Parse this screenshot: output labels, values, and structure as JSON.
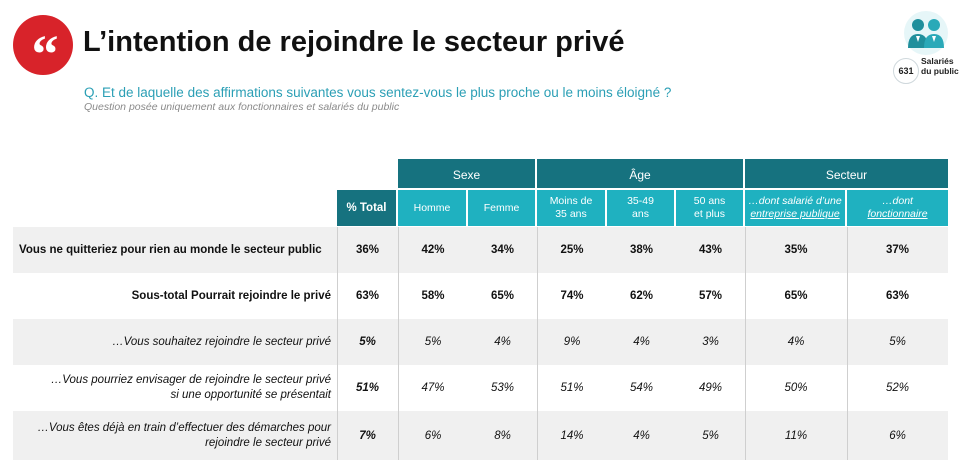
{
  "header": {
    "quote_icon": "quote-icon",
    "title": "L’intention de rejoindre le secteur privé",
    "question": "Q. Et de laquelle des affirmations suivantes vous sentez-vous le plus proche ou le moins éloigné ?",
    "sub_question": "Question posée uniquement aux fonctionnaires et salariés du public"
  },
  "badge": {
    "icon": "people-icon",
    "count": "631",
    "label_line1": "Salariés",
    "label_line2": "du public"
  },
  "colors": {
    "accent_red": "#d8232a",
    "header_dark": "#16727f",
    "header_light": "#1fb1c0",
    "question_teal": "#2b9fb5",
    "row_shade": "#f0f0f0"
  },
  "table": {
    "groups": {
      "sexe": "Sexe",
      "age": "Âge",
      "secteur": "Secteur"
    },
    "columns": {
      "total": "% Total",
      "homme": "Homme",
      "femme": "Femme",
      "moins35_l1": "Moins de",
      "moins35_l2": "35 ans",
      "a3549_l1": "35-49",
      "a3549_l2": "ans",
      "a50_l1": "50 ans",
      "a50_l2": "et plus",
      "salarie_l1": "…dont salarié d’une",
      "salarie_l2": "entreprise publique",
      "fonct_l1": "…dont",
      "fonct_l2": "fonctionnaire"
    },
    "rows": [
      {
        "label": "Vous ne quitteriez pour rien au monde le secteur public",
        "label2": "",
        "values": [
          "36%",
          "42%",
          "34%",
          "25%",
          "38%",
          "43%",
          "35%",
          "37%"
        ]
      },
      {
        "label": "Sous-total Pourrait rejoindre le privé",
        "label2": "",
        "values": [
          "63%",
          "58%",
          "65%",
          "74%",
          "62%",
          "57%",
          "65%",
          "63%"
        ]
      },
      {
        "label": "…Vous souhaitez rejoindre le secteur privé",
        "label2": "",
        "values": [
          "5%",
          "5%",
          "4%",
          "9%",
          "4%",
          "3%",
          "4%",
          "5%"
        ]
      },
      {
        "label": "…Vous pourriez envisager de rejoindre le secteur privé",
        "label2": "si une opportunité se présentait",
        "values": [
          "51%",
          "47%",
          "53%",
          "51%",
          "54%",
          "49%",
          "50%",
          "52%"
        ]
      },
      {
        "label": "…Vous êtes déjà en train d’effectuer des démarches pour",
        "label2": "rejoindre le secteur privé",
        "values": [
          "7%",
          "6%",
          "8%",
          "14%",
          "4%",
          "5%",
          "11%",
          "6%"
        ]
      }
    ]
  }
}
